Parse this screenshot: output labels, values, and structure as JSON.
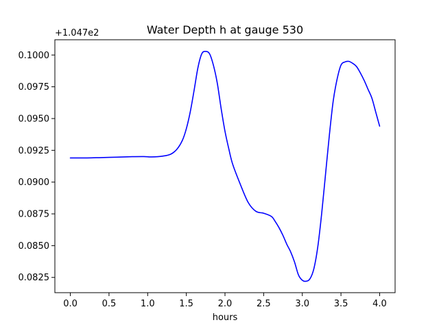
{
  "chart_data": {
    "type": "line",
    "title": "Water Depth h at gauge 530",
    "xlabel": "hours",
    "ylabel": "",
    "y_offset_label": "+1.047e2",
    "xlim": [
      -0.2,
      4.2
    ],
    "ylim": [
      0.0813,
      0.1012
    ],
    "x_ticks": [
      0.0,
      0.5,
      1.0,
      1.5,
      2.0,
      2.5,
      3.0,
      3.5,
      4.0
    ],
    "x_tick_labels": [
      "0.0",
      "0.5",
      "1.0",
      "1.5",
      "2.0",
      "2.5",
      "3.0",
      "3.5",
      "4.0"
    ],
    "y_ticks": [
      0.0825,
      0.085,
      0.0875,
      0.09,
      0.0925,
      0.095,
      0.0975,
      0.1
    ],
    "y_tick_labels": [
      "0.0825",
      "0.0850",
      "0.0875",
      "0.0900",
      "0.0925",
      "0.0950",
      "0.0975",
      "0.1000"
    ],
    "grid": false,
    "series": [
      {
        "name": "",
        "color": "#0000ff",
        "x": [
          0.0,
          0.2,
          0.4,
          0.6,
          0.8,
          0.95,
          1.05,
          1.2,
          1.3,
          1.38,
          1.45,
          1.5,
          1.55,
          1.6,
          1.65,
          1.7,
          1.75,
          1.8,
          1.85,
          1.9,
          1.95,
          2.0,
          2.05,
          2.1,
          2.2,
          2.3,
          2.4,
          2.5,
          2.6,
          2.65,
          2.7,
          2.75,
          2.8,
          2.85,
          2.9,
          2.95,
          3.0,
          3.05,
          3.1,
          3.15,
          3.2,
          3.25,
          3.3,
          3.35,
          3.4,
          3.45,
          3.5,
          3.55,
          3.6,
          3.65,
          3.7,
          3.75,
          3.8,
          3.85,
          3.9,
          3.95,
          4.0
        ],
        "y": [
          0.0919,
          0.0919,
          0.09193,
          0.09196,
          0.092,
          0.09201,
          0.09198,
          0.09205,
          0.0922,
          0.0926,
          0.0933,
          0.0942,
          0.0955,
          0.0972,
          0.099,
          0.1001,
          0.10028,
          0.1001,
          0.0992,
          0.0978,
          0.0958,
          0.094,
          0.0926,
          0.0914,
          0.0898,
          0.0884,
          0.0877,
          0.08755,
          0.0873,
          0.0869,
          0.0864,
          0.0858,
          0.0851,
          0.0845,
          0.0837,
          0.0827,
          0.08228,
          0.0822,
          0.0824,
          0.0832,
          0.0849,
          0.0875,
          0.0906,
          0.0937,
          0.0964,
          0.0981,
          0.0992,
          0.09945,
          0.0995,
          0.09935,
          0.0991,
          0.0986,
          0.098,
          0.0973,
          0.0966,
          0.0955,
          0.0944
        ]
      }
    ]
  }
}
